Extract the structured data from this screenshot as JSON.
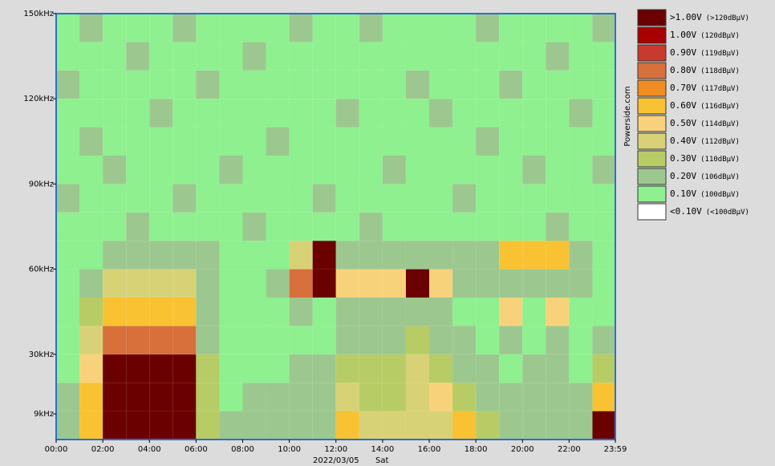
{
  "chart_data": {
    "type": "heatmap",
    "x": [
      0,
      1,
      2,
      3,
      4,
      5,
      6,
      7,
      8,
      9,
      10,
      11,
      12,
      13,
      14,
      15,
      16,
      17,
      18,
      19,
      20,
      21,
      22,
      23
    ],
    "y": [
      0,
      10,
      20,
      30,
      40,
      50,
      60,
      70,
      80,
      90,
      100,
      110,
      120,
      130,
      140
    ],
    "z": [
      [
        0.2,
        0.6,
        1.2,
        1.2,
        1.2,
        1.2,
        0.3,
        0.2,
        0.2,
        0.2,
        0.2,
        0.2,
        0.6,
        0.4,
        0.4,
        0.4,
        0.4,
        0.6,
        0.3,
        0.2,
        0.2,
        0.2,
        0.2,
        1.2
      ],
      [
        0.2,
        0.6,
        1.2,
        1.2,
        1.2,
        1.2,
        0.3,
        0.1,
        0.2,
        0.2,
        0.2,
        0.2,
        0.4,
        0.3,
        0.3,
        0.4,
        0.5,
        0.3,
        0.2,
        0.2,
        0.2,
        0.2,
        0.2,
        0.6
      ],
      [
        0.1,
        0.5,
        1.2,
        1.2,
        1.2,
        1.2,
        0.3,
        0.1,
        0.1,
        0.1,
        0.2,
        0.2,
        0.3,
        0.3,
        0.3,
        0.4,
        0.3,
        0.2,
        0.2,
        0.1,
        0.2,
        0.2,
        0.1,
        0.3
      ],
      [
        0.1,
        0.4,
        0.8,
        0.8,
        0.8,
        0.8,
        0.2,
        0.1,
        0.1,
        0.1,
        0.1,
        0.1,
        0.2,
        0.2,
        0.2,
        0.3,
        0.2,
        0.2,
        0.1,
        0.2,
        0.1,
        0.2,
        0.1,
        0.2
      ],
      [
        0.1,
        0.3,
        0.6,
        0.6,
        0.6,
        0.6,
        0.2,
        0.1,
        0.1,
        0.1,
        0.2,
        0.1,
        0.2,
        0.2,
        0.2,
        0.2,
        0.2,
        0.1,
        0.1,
        0.5,
        0.1,
        0.5,
        0.1,
        0.1
      ],
      [
        0.1,
        0.2,
        0.4,
        0.4,
        0.4,
        0.4,
        0.2,
        0.1,
        0.1,
        0.2,
        0.8,
        1.2,
        0.5,
        0.5,
        0.5,
        1.2,
        0.5,
        0.2,
        0.2,
        0.2,
        0.2,
        0.2,
        0.2,
        0.1
      ],
      [
        0.1,
        0.1,
        0.2,
        0.2,
        0.2,
        0.2,
        0.2,
        0.1,
        0.1,
        0.1,
        0.4,
        1.2,
        0.2,
        0.2,
        0.2,
        0.2,
        0.2,
        0.2,
        0.2,
        0.6,
        0.6,
        0.6,
        0.2,
        0.1
      ],
      [
        0.1,
        0.1,
        0.1,
        0.2,
        0.1,
        0.1,
        0.1,
        0.1,
        0.2,
        0.1,
        0.1,
        0.1,
        0.1,
        0.2,
        0.1,
        0.1,
        0.1,
        0.1,
        0.1,
        0.1,
        0.1,
        0.2,
        0.1,
        0.1
      ],
      [
        0.2,
        0.1,
        0.1,
        0.1,
        0.1,
        0.2,
        0.1,
        0.1,
        0.1,
        0.1,
        0.1,
        0.2,
        0.1,
        0.1,
        0.1,
        0.1,
        0.1,
        0.2,
        0.1,
        0.1,
        0.1,
        0.1,
        0.1,
        0.1
      ],
      [
        0.1,
        0.1,
        0.2,
        0.1,
        0.1,
        0.1,
        0.1,
        0.2,
        0.1,
        0.1,
        0.1,
        0.1,
        0.1,
        0.1,
        0.2,
        0.1,
        0.1,
        0.1,
        0.1,
        0.1,
        0.2,
        0.1,
        0.1,
        0.2
      ],
      [
        0.1,
        0.2,
        0.1,
        0.1,
        0.1,
        0.1,
        0.1,
        0.1,
        0.1,
        0.2,
        0.1,
        0.1,
        0.1,
        0.1,
        0.1,
        0.1,
        0.1,
        0.1,
        0.2,
        0.1,
        0.1,
        0.1,
        0.1,
        0.1
      ],
      [
        0.1,
        0.1,
        0.1,
        0.1,
        0.2,
        0.1,
        0.1,
        0.1,
        0.1,
        0.1,
        0.1,
        0.1,
        0.2,
        0.1,
        0.1,
        0.1,
        0.2,
        0.1,
        0.1,
        0.1,
        0.1,
        0.1,
        0.2,
        0.1
      ],
      [
        0.2,
        0.1,
        0.1,
        0.1,
        0.1,
        0.1,
        0.2,
        0.1,
        0.1,
        0.1,
        0.1,
        0.1,
        0.1,
        0.1,
        0.1,
        0.2,
        0.1,
        0.1,
        0.1,
        0.2,
        0.1,
        0.1,
        0.1,
        0.1
      ],
      [
        0.1,
        0.1,
        0.1,
        0.2,
        0.1,
        0.1,
        0.1,
        0.1,
        0.2,
        0.1,
        0.1,
        0.1,
        0.1,
        0.1,
        0.1,
        0.1,
        0.1,
        0.1,
        0.1,
        0.1,
        0.1,
        0.2,
        0.1,
        0.1
      ],
      [
        0.1,
        0.2,
        0.1,
        0.1,
        0.1,
        0.2,
        0.1,
        0.1,
        0.1,
        0.1,
        0.2,
        0.1,
        0.1,
        0.2,
        0.1,
        0.1,
        0.1,
        0.1,
        0.2,
        0.1,
        0.1,
        0.1,
        0.1,
        0.2
      ]
    ],
    "xlim": [
      0,
      23.983
    ],
    "xticks": [
      {
        "value": 0,
        "label": "00:00"
      },
      {
        "value": 2,
        "label": "02:00"
      },
      {
        "value": 4,
        "label": "04:00"
      },
      {
        "value": 6,
        "label": "06:00"
      },
      {
        "value": 8,
        "label": "08:00"
      },
      {
        "value": 10,
        "label": "10:00"
      },
      {
        "value": 12,
        "label": "12:00"
      },
      {
        "value": 14,
        "label": "14:00"
      },
      {
        "value": 16,
        "label": "16:00"
      },
      {
        "value": 18,
        "label": "18:00"
      },
      {
        "value": 20,
        "label": "20:00"
      },
      {
        "value": 22,
        "label": "22:00"
      },
      {
        "value": 23.983,
        "label": "23:59"
      }
    ],
    "ylim": [
      0,
      150
    ],
    "yticks": [
      {
        "value": 9,
        "label": "9kHz"
      },
      {
        "value": 30,
        "label": "30kHz"
      },
      {
        "value": 60,
        "label": "60kHz"
      },
      {
        "value": 90,
        "label": "90kHz"
      },
      {
        "value": 120,
        "label": "120kHz"
      },
      {
        "value": 150,
        "label": "150kHz"
      }
    ],
    "date": "2022/03/05",
    "weekday": "Sat",
    "brand": "Powerside.com",
    "legend": [
      {
        "value": 1.0,
        "label": ">1.00V",
        "sub": "(>120dBµV)",
        "color": "#6b0000"
      },
      {
        "value": 1.0,
        "label": "1.00V",
        "sub": "(120dBµV)",
        "color": "#a80000"
      },
      {
        "value": 0.9,
        "label": "0.90V",
        "sub": "(119dBµV)",
        "color": "#c83a2c"
      },
      {
        "value": 0.8,
        "label": "0.80V",
        "sub": "(118dBµV)",
        "color": "#d8703c"
      },
      {
        "value": 0.7,
        "label": "0.70V",
        "sub": "(117dBµV)",
        "color": "#f08c22"
      },
      {
        "value": 0.6,
        "label": "0.60V",
        "sub": "(116dBµV)",
        "color": "#f8c232"
      },
      {
        "value": 0.5,
        "label": "0.50V",
        "sub": "(114dBµV)",
        "color": "#f8d27a"
      },
      {
        "value": 0.4,
        "label": "0.40V",
        "sub": "(112dBµV)",
        "color": "#d8d276"
      },
      {
        "value": 0.3,
        "label": "0.30V",
        "sub": "(110dBµV)",
        "color": "#b8cc66"
      },
      {
        "value": 0.2,
        "label": "0.20V",
        "sub": "(106dBµV)",
        "color": "#9cc890"
      },
      {
        "value": 0.1,
        "label": "0.10V",
        "sub": "(100dBµV)",
        "color": "#8ef08e"
      },
      {
        "value": 0.1,
        "label": "<0.10V",
        "sub": "(<100dBµV)",
        "color": "#ffffff"
      }
    ]
  }
}
